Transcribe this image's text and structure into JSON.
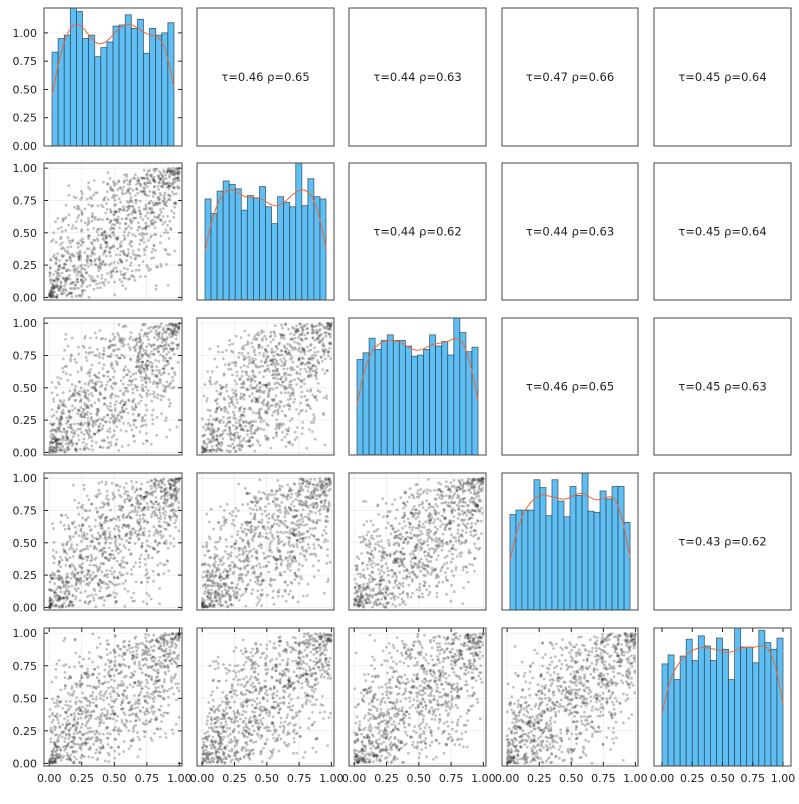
{
  "chart_data": {
    "type": "pair-plot",
    "variables": 5,
    "diagonal": {
      "type": "histogram-with-kde",
      "bin_edges_range": [
        0,
        1
      ],
      "bins": 20,
      "bar_color": "#5ebff5",
      "kde_color": "#e8683a",
      "densities": [
        [
          0.83,
          0.95,
          0.98,
          1.22,
          1.19,
          0.95,
          0.98,
          0.79,
          0.87,
          0.92,
          1.06,
          1.07,
          1.16,
          1.04,
          1.12,
          0.82,
          1.04,
          0.98,
          1.0,
          1.09
        ],
        [
          0.9,
          0.77,
          0.97,
          1.06,
          1.03,
          0.99,
          0.8,
          0.93,
          0.91,
          1.01,
          0.83,
          0.68,
          0.92,
          0.87,
          0.83,
          1.22,
          0.84,
          1.08,
          0.92,
          0.9
        ],
        [
          0.85,
          0.91,
          1.04,
          0.94,
          1.02,
          1.07,
          1.02,
          1.02,
          0.97,
          0.88,
          0.89,
          0.94,
          1.07,
          0.97,
          1.01,
          0.89,
          1.22,
          1.09,
          0.92,
          0.96
        ],
        [
          0.85,
          0.89,
          0.89,
          0.89,
          1.16,
          1.09,
          0.84,
          1.16,
          0.97,
          0.83,
          1.1,
          1.02,
          1.22,
          0.88,
          0.87,
          1.06,
          0.99,
          1.1,
          1.1,
          0.78
        ],
        [
          0.91,
          0.99,
          0.77,
          0.98,
          1.13,
          0.94,
          1.16,
          1.07,
          0.94,
          1.14,
          1.04,
          0.77,
          1.23,
          1.06,
          1.06,
          0.92,
          1.21,
          1.1,
          1.04,
          1.14
        ]
      ],
      "first_ylim": [
        0,
        1.22
      ],
      "first_yticks": [
        "0.00",
        "0.25",
        "0.50",
        "0.75",
        "1.00"
      ]
    },
    "lower": {
      "type": "scatter",
      "point_color": "#333333",
      "xlim": [
        -0.04,
        1.02
      ],
      "ylim": [
        -0.02,
        1.04
      ],
      "ticks": [
        "0.00",
        "0.25",
        "0.50",
        "0.75",
        "1.00"
      ],
      "grid": true
    },
    "upper": {
      "type": "annotation",
      "labels": [
        {
          "row": 0,
          "col": 1,
          "text": "τ=0.46  ρ=0.65",
          "tau": 0.46,
          "rho": 0.65
        },
        {
          "row": 0,
          "col": 2,
          "text": "τ=0.44  ρ=0.63",
          "tau": 0.44,
          "rho": 0.63
        },
        {
          "row": 0,
          "col": 3,
          "text": "τ=0.47  ρ=0.66",
          "tau": 0.47,
          "rho": 0.66
        },
        {
          "row": 0,
          "col": 4,
          "text": "τ=0.45  ρ=0.64",
          "tau": 0.45,
          "rho": 0.64
        },
        {
          "row": 1,
          "col": 2,
          "text": "τ=0.44  ρ=0.62",
          "tau": 0.44,
          "rho": 0.62
        },
        {
          "row": 1,
          "col": 3,
          "text": "τ=0.44  ρ=0.63",
          "tau": 0.44,
          "rho": 0.63
        },
        {
          "row": 1,
          "col": 4,
          "text": "τ=0.45  ρ=0.64",
          "tau": 0.45,
          "rho": 0.64
        },
        {
          "row": 2,
          "col": 3,
          "text": "τ=0.46  ρ=0.65",
          "tau": 0.46,
          "rho": 0.65
        },
        {
          "row": 2,
          "col": 4,
          "text": "τ=0.45  ρ=0.63",
          "tau": 0.45,
          "rho": 0.63
        },
        {
          "row": 3,
          "col": 4,
          "text": "τ=0.43  ρ=0.62",
          "tau": 0.43,
          "rho": 0.62
        }
      ]
    }
  }
}
